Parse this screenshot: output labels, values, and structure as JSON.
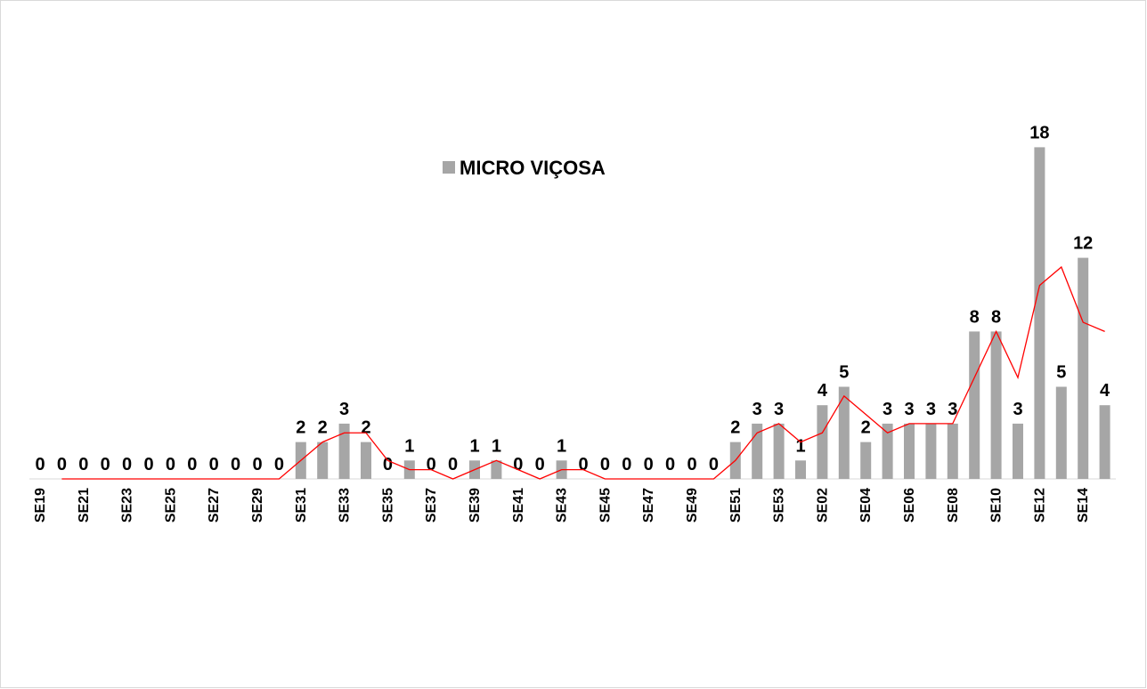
{
  "chart_data": {
    "type": "bar",
    "categories": [
      "SE19",
      null,
      "SE21",
      null,
      "SE23",
      null,
      "SE25",
      null,
      "SE27",
      null,
      "SE29",
      null,
      "SE31",
      null,
      "SE33",
      null,
      "SE35",
      null,
      "SE37",
      null,
      "SE39",
      null,
      "SE41",
      null,
      "SE43",
      null,
      "SE45",
      null,
      "SE47",
      null,
      "SE49",
      null,
      "SE51",
      null,
      "SE53",
      null,
      "SE02",
      null,
      "SE04",
      null,
      "SE06",
      null,
      "SE08",
      null,
      "SE10",
      null,
      "SE12",
      null,
      "SE14",
      null
    ],
    "series": [
      {
        "name": "MICRO VIÇOSA",
        "color": "#a6a6a6",
        "values": [
          0,
          0,
          0,
          0,
          0,
          0,
          0,
          0,
          0,
          0,
          0,
          0,
          2,
          2,
          3,
          2,
          0,
          1,
          0,
          0,
          1,
          1,
          0,
          0,
          1,
          0,
          0,
          0,
          0,
          0,
          0,
          0,
          2,
          3,
          3,
          1,
          4,
          5,
          2,
          3,
          3,
          3,
          3,
          8,
          8,
          3,
          18,
          5,
          12,
          4
        ]
      }
    ],
    "trendline": {
      "color": "#ff0000",
      "values": [
        null,
        0,
        0,
        0,
        0,
        0,
        0,
        0,
        0,
        0,
        0,
        0,
        1,
        2,
        2.5,
        2.5,
        1,
        0.5,
        0.5,
        0,
        0.5,
        1,
        0.5,
        0,
        0.5,
        0.5,
        0,
        0,
        0,
        0,
        0,
        0,
        1,
        2.5,
        3,
        2,
        2.5,
        4.5,
        3.5,
        2.5,
        3,
        3,
        3,
        5.5,
        8,
        5.5,
        10.5,
        11.5,
        8.5,
        8
      ]
    },
    "ylim": [
      0,
      20
    ],
    "legend": "top-center"
  }
}
